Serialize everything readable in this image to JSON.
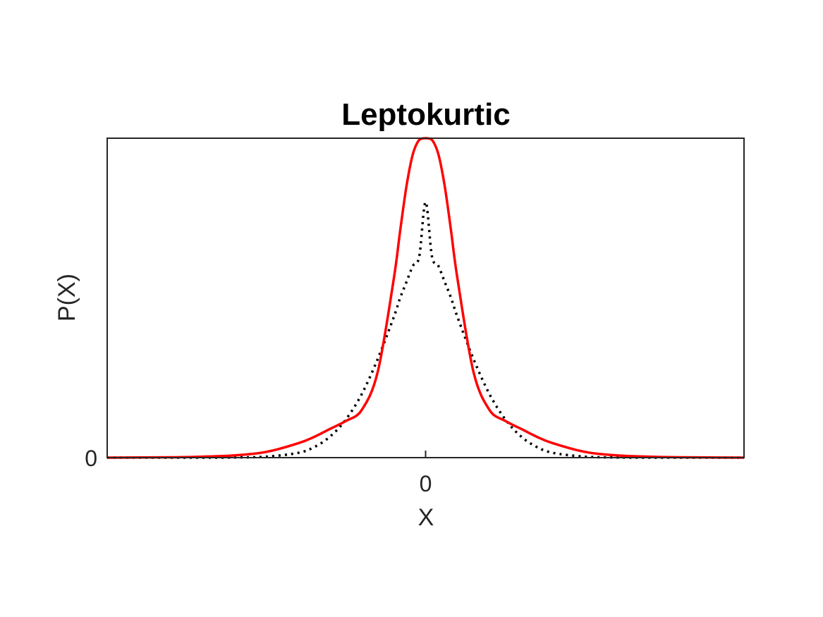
{
  "chart_data": {
    "type": "line",
    "title": "Leptokurtic",
    "xlabel": "X",
    "ylabel": "P(X)",
    "xlim": [
      -5,
      5
    ],
    "ylim": [
      0,
      1
    ],
    "xticks": [
      0
    ],
    "xtick_labels": [
      "0"
    ],
    "yticks": [
      0
    ],
    "ytick_labels": [
      "0"
    ],
    "grid": false,
    "legend": "none",
    "x": [
      -5.0,
      -4.5,
      -4.0,
      -3.5,
      -3.0,
      -2.5,
      -2.0,
      -1.75,
      -1.5,
      -1.25,
      -1.0,
      -0.75,
      -0.5,
      -0.4,
      -0.3,
      -0.2,
      -0.1,
      0.0,
      0.1,
      0.2,
      0.3,
      0.4,
      0.5,
      0.75,
      1.0,
      1.25,
      1.5,
      1.75,
      2.0,
      2.5,
      3.0,
      3.5,
      4.0,
      4.5,
      5.0
    ],
    "series": [
      {
        "color": "#ff0000",
        "style": "solid",
        "values": [
          0.0,
          0.0005,
          0.001,
          0.003,
          0.007,
          0.018,
          0.045,
          0.065,
          0.09,
          0.115,
          0.15,
          0.27,
          0.56,
          0.71,
          0.85,
          0.95,
          0.995,
          1.0,
          0.995,
          0.95,
          0.85,
          0.71,
          0.56,
          0.27,
          0.15,
          0.115,
          0.09,
          0.065,
          0.045,
          0.018,
          0.007,
          0.003,
          0.001,
          0.0005,
          0.0
        ]
      },
      {
        "color": "#000000",
        "style": "dotted",
        "values": [
          0.0,
          0.0,
          0.0,
          0.0,
          0.0005,
          0.003,
          0.015,
          0.033,
          0.066,
          0.12,
          0.2,
          0.31,
          0.44,
          0.5,
          0.55,
          0.6,
          0.63,
          0.8,
          0.63,
          0.6,
          0.55,
          0.5,
          0.44,
          0.31,
          0.2,
          0.12,
          0.066,
          0.033,
          0.015,
          0.003,
          0.0005,
          0.0,
          0.0,
          0.0,
          0.0
        ]
      }
    ],
    "colors": {
      "axes": "#262626",
      "background": "#ffffff"
    }
  }
}
